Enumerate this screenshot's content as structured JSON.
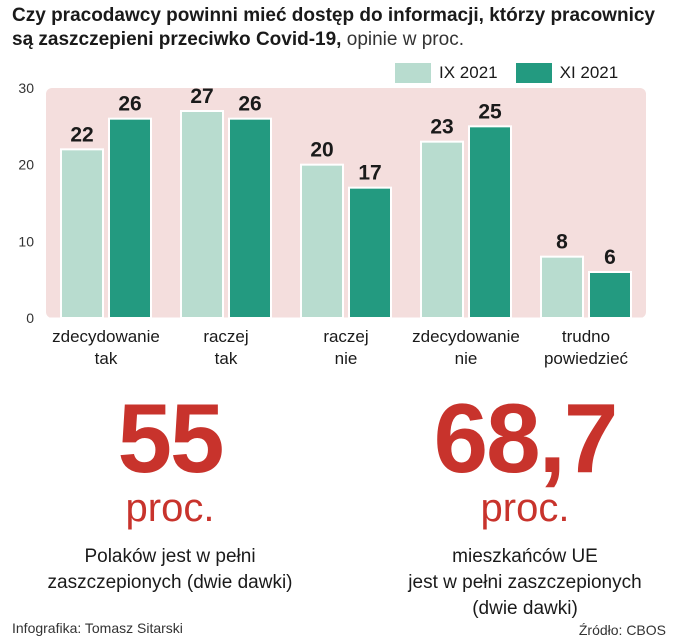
{
  "title_bold": "Czy pracodawcy powinni mieć dostęp do informacji, którzy pracownicy są zaszczepieni przeciwko Covid-19,",
  "title_normal": " opinie w proc.",
  "colors": {
    "series1": "#b8dccf",
    "series2": "#239a80",
    "plot_bg": "#f4dedd",
    "accent_red": "#c8332c"
  },
  "chart_data": {
    "type": "bar",
    "categories": [
      [
        "zdecydowanie",
        "tak"
      ],
      [
        "raczej",
        "tak"
      ],
      [
        "raczej",
        "nie"
      ],
      [
        "zdecydowanie",
        "nie"
      ],
      [
        "trudno",
        "powiedzieć"
      ]
    ],
    "series": [
      {
        "name": "IX 2021",
        "values": [
          22,
          27,
          20,
          23,
          8
        ]
      },
      {
        "name": "XI 2021",
        "values": [
          26,
          26,
          17,
          25,
          6
        ]
      }
    ],
    "ylim": [
      0,
      30
    ],
    "yticks": [
      "0",
      "10",
      "20",
      "30"
    ],
    "xlabel": "",
    "ylabel": "",
    "grid": false,
    "legend_position": "top-right",
    "data_labels": true
  },
  "stats": [
    {
      "value": "55",
      "unit": "proc.",
      "desc_lines": [
        "Polaków jest w pełni",
        "zaszczepionych (dwie dawki)"
      ]
    },
    {
      "value": "68,7",
      "unit": "proc.",
      "desc_lines": [
        "mieszkańców UE",
        "jest w pełni zaszczepionych",
        "(dwie dawki)"
      ]
    }
  ],
  "footer": {
    "credit": "Infografika: Tomasz Sitarski",
    "source": "Źródło: CBOS"
  }
}
